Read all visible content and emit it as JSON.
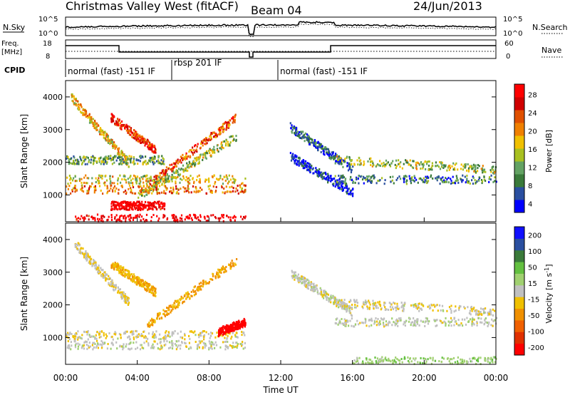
{
  "header": {
    "title": "Christmas Valley West (fitACF)",
    "beam": "Beam 04",
    "date": "24/Jun/2013"
  },
  "top_panels": {
    "nsky_label": "N.Sky",
    "nsky_ticks": [
      "10^5",
      "10^0"
    ],
    "nsearch_label": "N.Search",
    "freq_label": "Freq.",
    "freq_unit": "[MHz]",
    "freq_ticks": [
      "18",
      "8"
    ],
    "nave_label": "Nave",
    "nave_ticks": [
      "60",
      "0"
    ],
    "cpid_label": "CPID",
    "cpid_segments": [
      {
        "label": "normal (fast) -151 IF",
        "start_hour": 0,
        "end_hour": 5.9
      },
      {
        "label": "rbsp 201 IF",
        "start_hour": 5.9,
        "end_hour": 11.7
      },
      {
        "label": "normal (fast) -151 IF",
        "start_hour": 11.7,
        "end_hour": 24
      }
    ]
  },
  "colors": {
    "power": [
      "#0000ff",
      "#2a4fa0",
      "#3a7a3a",
      "#63a263",
      "#a8c020",
      "#f0c000",
      "#f08000",
      "#e05000",
      "#d00000",
      "#ff0000"
    ],
    "velocity": [
      "#1010ff",
      "#2a4fa0",
      "#3a7a3a",
      "#63c040",
      "#a0d070",
      "#c0c0c0",
      "#f0c000",
      "#f09000",
      "#f06000",
      "#e03000",
      "#ff0000"
    ]
  },
  "chart_data": [
    {
      "type": "heatmap",
      "name": "power-panel",
      "xlabel": "",
      "ylabel": "Slant Range [km]",
      "x_range_hours": [
        0,
        24
      ],
      "ylim": [
        180,
        4500
      ],
      "yticks": [
        1000,
        2000,
        3000,
        4000
      ],
      "colorbar": {
        "label": "Power [dB]",
        "ticks": [
          4,
          8,
          12,
          16,
          20,
          24,
          28
        ]
      },
      "features": [
        {
          "from": [
            0.3,
            4000
          ],
          "to": [
            3.5,
            2000
          ],
          "level": 18
        },
        {
          "from": [
            2.5,
            3400
          ],
          "to": [
            5.0,
            2400
          ],
          "level": 24
        },
        {
          "from": [
            4.5,
            1300
          ],
          "to": [
            9.5,
            3400
          ],
          "level": 22
        },
        {
          "from": [
            4.0,
            1000
          ],
          "to": [
            9.5,
            2800
          ],
          "level": 14
        },
        {
          "from": [
            0.0,
            2100
          ],
          "to": [
            5.5,
            2100
          ],
          "level": 12
        },
        {
          "from": [
            0.0,
            1500
          ],
          "to": [
            10.0,
            1500
          ],
          "level": 16
        },
        {
          "from": [
            0.0,
            1200
          ],
          "to": [
            10.0,
            1200
          ],
          "level": 20
        },
        {
          "from": [
            2.5,
            700
          ],
          "to": [
            5.5,
            700
          ],
          "level": 28
        },
        {
          "from": [
            0.5,
            300
          ],
          "to": [
            10.0,
            300
          ],
          "level": 28
        },
        {
          "from": [
            12.5,
            3100
          ],
          "to": [
            16.0,
            1800
          ],
          "level": 8
        },
        {
          "from": [
            12.5,
            2200
          ],
          "to": [
            16.0,
            1100
          ],
          "level": 6
        },
        {
          "from": [
            15.0,
            2100
          ],
          "to": [
            24.0,
            1800
          ],
          "level": 14
        },
        {
          "from": [
            15.0,
            1500
          ],
          "to": [
            24.0,
            1500
          ],
          "level": 10
        }
      ]
    },
    {
      "type": "heatmap",
      "name": "velocity-panel",
      "xlabel": "Time UT",
      "ylabel": "Slant Range [km]",
      "x_range_hours": [
        0,
        24
      ],
      "xticks": [
        "00:00",
        "04:00",
        "08:00",
        "12:00",
        "16:00",
        "20:00",
        "00:00"
      ],
      "ylim": [
        180,
        4500
      ],
      "yticks": [
        1000,
        2000,
        3000,
        4000
      ],
      "colorbar": {
        "label": "Velocity [m s^-1]",
        "ticks": [
          200,
          100,
          50,
          15,
          -15,
          -50,
          -100,
          -200
        ]
      },
      "features": [
        {
          "from": [
            0.5,
            3900
          ],
          "to": [
            3.5,
            2100
          ],
          "level": -15
        },
        {
          "from": [
            2.5,
            3300
          ],
          "to": [
            5.0,
            2400
          ],
          "level": -50
        },
        {
          "from": [
            4.5,
            1400
          ],
          "to": [
            9.5,
            3400
          ],
          "level": -60
        },
        {
          "from": [
            0.0,
            1100
          ],
          "to": [
            10.0,
            1100
          ],
          "level": -10
        },
        {
          "from": [
            0.0,
            800
          ],
          "to": [
            10.0,
            800
          ],
          "level": 0
        },
        {
          "from": [
            8.5,
            1200
          ],
          "to": [
            10.0,
            1500
          ],
          "level": -200
        },
        {
          "from": [
            12.5,
            3000
          ],
          "to": [
            16.0,
            1800
          ],
          "level": 0
        },
        {
          "from": [
            15.0,
            2100
          ],
          "to": [
            24.0,
            1800
          ],
          "level": -10
        },
        {
          "from": [
            15.0,
            1500
          ],
          "to": [
            24.0,
            1500
          ],
          "level": 5
        },
        {
          "from": [
            16.0,
            300
          ],
          "to": [
            24.0,
            300
          ],
          "level": 40
        }
      ]
    }
  ]
}
